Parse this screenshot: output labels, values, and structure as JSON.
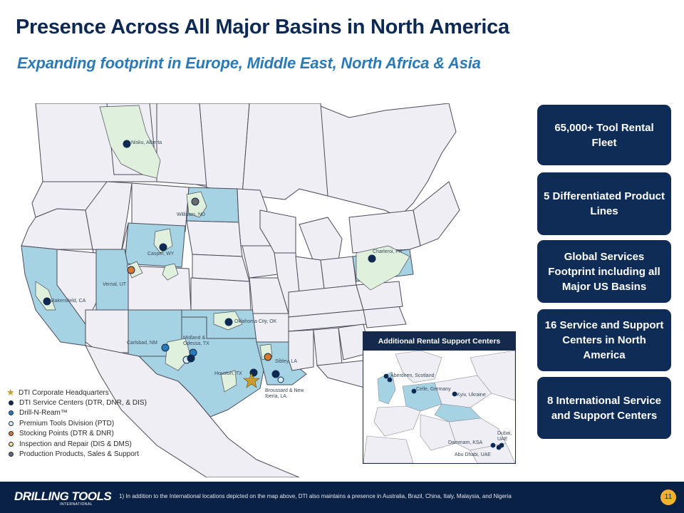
{
  "slide": {
    "title": "Presence Across All Major Basins in North America",
    "subtitle": "Expanding footprint in Europe, Middle East, North Africa & Asia"
  },
  "map_labels": {
    "nisku": "Nisku, Alberta",
    "williston": "Williston, ND",
    "casper": "Casper, WY",
    "vernal": "Vernal, UT",
    "bakersfield": "Bakersfield, CA",
    "charleroi": "Charleroi, PA",
    "oklahoma": "Oklahoma City, OK",
    "carlsbad": "Carlsbad, NM",
    "midland": "Midland & Odessa, TX",
    "sibley": "Sibley, LA",
    "houston": "Houston, TX",
    "broussard": "Broussard & New Iberia, LA"
  },
  "legend": [
    {
      "label": "DTI Corporate Headquarters",
      "color": "#c99a2e",
      "icon": "star-icon"
    },
    {
      "label": "DTI Service Centers (DTR, DNR, & DIS)",
      "color": "#0e2a52",
      "icon": "dot-icon"
    },
    {
      "label": "Drill-N-Ream™",
      "color": "#2a7ab7",
      "icon": "dot-icon"
    },
    {
      "label": "Premium Tools Division (PTD)",
      "color": "#d9ecf6",
      "icon": "dot-icon"
    },
    {
      "label": "Stocking Points (DTR & DNR)",
      "color": "#d9782d",
      "icon": "dot-icon"
    },
    {
      "label": "Inspection and Repair (DIS & DMS)",
      "color": "#f3d88e",
      "icon": "dot-icon"
    },
    {
      "label": "Production Products, Sales & Support",
      "color": "#6b6b6b",
      "icon": "dot-icon"
    }
  ],
  "inset": {
    "title": "Additional Rental Support Centers",
    "labels": {
      "aberdeen": "Aberdeen, Scotland",
      "celle": "Celle, Germany",
      "kyiv": "Kyiv, Ukraine",
      "dubai": "Dubai, UAE",
      "dammam": "Dammam, KSA",
      "abudhabi": "Abu Dhabi, UAE"
    }
  },
  "cards": [
    "65,000+ Tool Rental Fleet",
    "5 Differentiated Product Lines",
    "Global Services Footprint including all Major US Basins",
    "16 Service and Support Centers in North America",
    "8 International Service and Support Centers"
  ],
  "footer": {
    "logo": "DRILLING TOOLS",
    "logo_sub": "INTERNATIONAL",
    "note": "1) In addition to the International locations depicted on the map above, DTI also maintains a presence in Australia, Brazil, China, Italy, Malaysia, and Nigeria",
    "page": "11"
  },
  "colors": {
    "navy": "#0e2a52",
    "accent_blue": "#2a7ab7",
    "state_fill": "#eeeef4",
    "highlight_fill": "#a6d3e3",
    "basin_fill": "#dff0dc",
    "page_badge": "#f2b030"
  }
}
